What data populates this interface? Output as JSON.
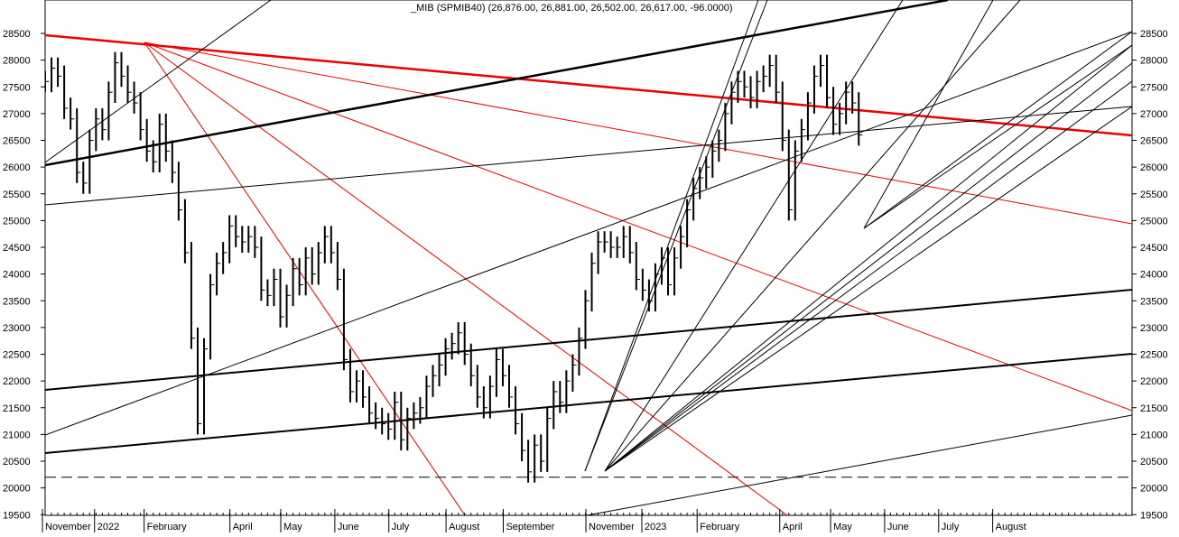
{
  "chart_data": {
    "type": "line",
    "title": "_MIB (SPMIB40) (26,876.00, 26,881.00, 26,502.00, 26,617.00, -96.0000)",
    "ylim": [
      19400,
      28900
    ],
    "y_ticks": [
      19500,
      20000,
      20500,
      21000,
      21500,
      22000,
      22500,
      23000,
      23500,
      24000,
      24500,
      25000,
      25500,
      26000,
      26500,
      27000,
      27500,
      28000,
      28500
    ],
    "y_tick_labels_left": [
      "19500",
      "20000",
      "20500",
      "21000",
      "21500",
      "22000",
      "22500",
      "23000",
      "23500",
      "24000",
      "24500",
      "25000",
      "25500",
      "26000",
      "26500",
      "27000",
      "27500",
      "28000",
      "28500"
    ],
    "y_tick_labels_right": [
      "19500",
      "20000",
      "20500",
      "21000",
      "21500",
      "22000",
      "22500",
      "23000",
      "23500",
      "24000",
      "24500",
      "25000",
      "25500",
      "26000",
      "26500",
      "27000",
      "27500",
      "28000",
      "28500"
    ],
    "x_labels": [
      "November",
      "2022",
      "February",
      "April",
      "May",
      "June",
      "July",
      "August",
      "September",
      "November",
      "2023",
      "February",
      "April",
      "May",
      "June",
      "July",
      "August"
    ],
    "x_label_weeks": [
      0,
      8.2,
      16,
      29.5,
      37.5,
      46,
      54.5,
      63.5,
      72.5,
      85.5,
      94.3,
      103,
      116,
      124,
      132.5,
      141,
      149.5
    ],
    "x_week_range": [
      0,
      171
    ],
    "grid": false,
    "horizontal_support": 20200,
    "price_series": {
      "name": "_MIB",
      "unit": "week index",
      "points": [
        [
          0,
          27600
        ],
        [
          1,
          27850
        ],
        [
          2,
          27700
        ],
        [
          3,
          27100
        ],
        [
          4,
          26900
        ],
        [
          5,
          25900
        ],
        [
          6,
          25700
        ],
        [
          7,
          26500
        ],
        [
          8,
          26900
        ],
        [
          9,
          26700
        ],
        [
          10,
          27400
        ],
        [
          11,
          27950
        ],
        [
          12,
          27700
        ],
        [
          13,
          27400
        ],
        [
          14,
          27200
        ],
        [
          15,
          26700
        ],
        [
          16,
          26300
        ],
        [
          17,
          26100
        ],
        [
          18,
          26800
        ],
        [
          19,
          26300
        ],
        [
          20,
          25900
        ],
        [
          21,
          25200
        ],
        [
          22,
          24400
        ],
        [
          23,
          22800
        ],
        [
          24,
          21200
        ],
        [
          25,
          22600
        ],
        [
          26,
          23800
        ],
        [
          27,
          24200
        ],
        [
          28,
          24400
        ],
        [
          29,
          24900
        ],
        [
          30,
          24700
        ],
        [
          31,
          24600
        ],
        [
          32,
          24700
        ],
        [
          33,
          24500
        ],
        [
          34,
          23700
        ],
        [
          35,
          23600
        ],
        [
          36,
          23900
        ],
        [
          37,
          23200
        ],
        [
          38,
          23600
        ],
        [
          39,
          24100
        ],
        [
          40,
          23800
        ],
        [
          41,
          24300
        ],
        [
          42,
          24000
        ],
        [
          43,
          24400
        ],
        [
          44,
          24700
        ],
        [
          45,
          24400
        ],
        [
          46,
          23900
        ],
        [
          47,
          22400
        ],
        [
          48,
          21800
        ],
        [
          49,
          22000
        ],
        [
          50,
          21700
        ],
        [
          51,
          21400
        ],
        [
          52,
          21300
        ],
        [
          53,
          21200
        ],
        [
          54,
          21100
        ],
        [
          55,
          21600
        ],
        [
          56,
          20900
        ],
        [
          57,
          21300
        ],
        [
          58,
          21400
        ],
        [
          59,
          21500
        ],
        [
          60,
          21900
        ],
        [
          61,
          22100
        ],
        [
          62,
          22300
        ],
        [
          63,
          22600
        ],
        [
          64,
          22700
        ],
        [
          65,
          22900
        ],
        [
          66,
          22500
        ],
        [
          67,
          22100
        ],
        [
          68,
          21700
        ],
        [
          69,
          21500
        ],
        [
          70,
          21900
        ],
        [
          71,
          22400
        ],
        [
          72,
          22100
        ],
        [
          73,
          21700
        ],
        [
          74,
          21200
        ],
        [
          75,
          20700
        ],
        [
          76,
          20300
        ],
        [
          77,
          20800
        ],
        [
          78,
          20500
        ],
        [
          79,
          21300
        ],
        [
          80,
          21800
        ],
        [
          81,
          21600
        ],
        [
          82,
          22000
        ],
        [
          83,
          22300
        ],
        [
          84,
          22800
        ],
        [
          85,
          23500
        ],
        [
          86,
          24200
        ],
        [
          87,
          24600
        ],
        [
          88,
          24600
        ],
        [
          89,
          24500
        ],
        [
          90,
          24500
        ],
        [
          91,
          24700
        ],
        [
          92,
          24400
        ],
        [
          93,
          23900
        ],
        [
          94,
          23700
        ],
        [
          95,
          23500
        ],
        [
          96,
          24000
        ],
        [
          97,
          24300
        ],
        [
          98,
          23800
        ],
        [
          99,
          24300
        ],
        [
          100,
          24700
        ],
        [
          101,
          25200
        ],
        [
          102,
          25600
        ],
        [
          103,
          25800
        ],
        [
          104,
          26000
        ],
        [
          105,
          26300
        ],
        [
          106,
          26500
        ],
        [
          107,
          27000
        ],
        [
          108,
          27400
        ],
        [
          109,
          27600
        ],
        [
          110,
          27500
        ],
        [
          111,
          27300
        ],
        [
          112,
          27600
        ],
        [
          113,
          27700
        ],
        [
          114,
          27900
        ],
        [
          115,
          27400
        ],
        [
          116,
          26500
        ],
        [
          117,
          25200
        ],
        [
          118,
          26300
        ],
        [
          119,
          26700
        ],
        [
          120,
          27200
        ],
        [
          121,
          27700
        ],
        [
          122,
          27900
        ],
        [
          123,
          27300
        ],
        [
          124,
          26800
        ],
        [
          125,
          27000
        ],
        [
          126,
          27400
        ],
        [
          127,
          27200
        ],
        [
          128,
          26600
        ]
      ]
    }
  }
}
